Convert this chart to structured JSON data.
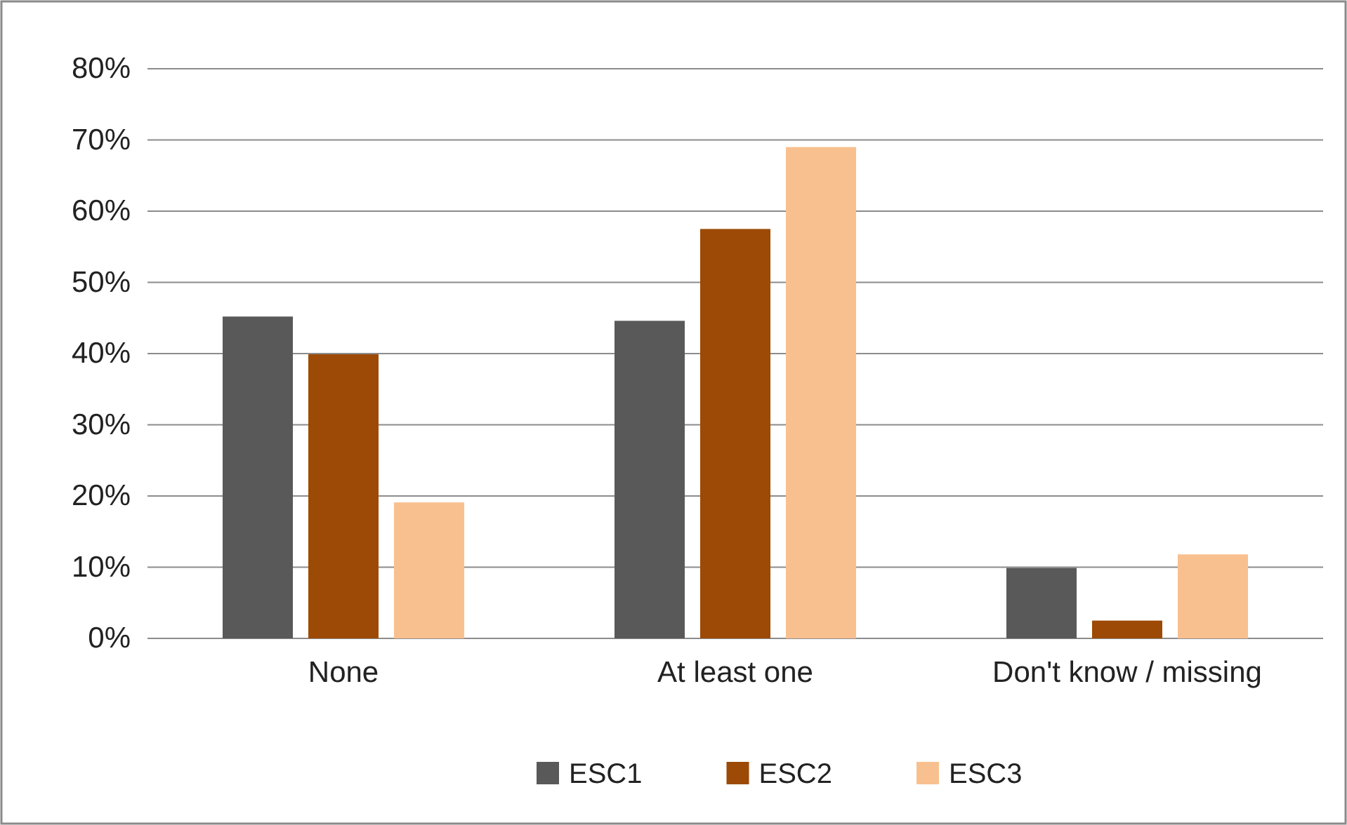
{
  "chart_data": {
    "type": "bar",
    "categories": [
      "None",
      "At least one",
      "Don't know / missing"
    ],
    "series": [
      {
        "name": "ESC1",
        "color": "#595959",
        "values": [
          45.2,
          44.6,
          9.9
        ]
      },
      {
        "name": "ESC2",
        "color": "#9c4a06",
        "values": [
          39.9,
          57.5,
          2.5
        ]
      },
      {
        "name": "ESC3",
        "color": "#f9c08f",
        "values": [
          19.1,
          69,
          11.8
        ]
      }
    ],
    "ylim": [
      0,
      80
    ],
    "yticks": [
      {
        "value": 0,
        "label": "0%"
      },
      {
        "value": 10,
        "label": "10%"
      },
      {
        "value": 20,
        "label": "20%"
      },
      {
        "value": 30,
        "label": "30%"
      },
      {
        "value": 40,
        "label": "40%"
      },
      {
        "value": 50,
        "label": "50%"
      },
      {
        "value": 60,
        "label": "60%"
      },
      {
        "value": 70,
        "label": "70%"
      },
      {
        "value": 80,
        "label": "80%"
      }
    ],
    "grid": "y",
    "legend": "bottom"
  }
}
